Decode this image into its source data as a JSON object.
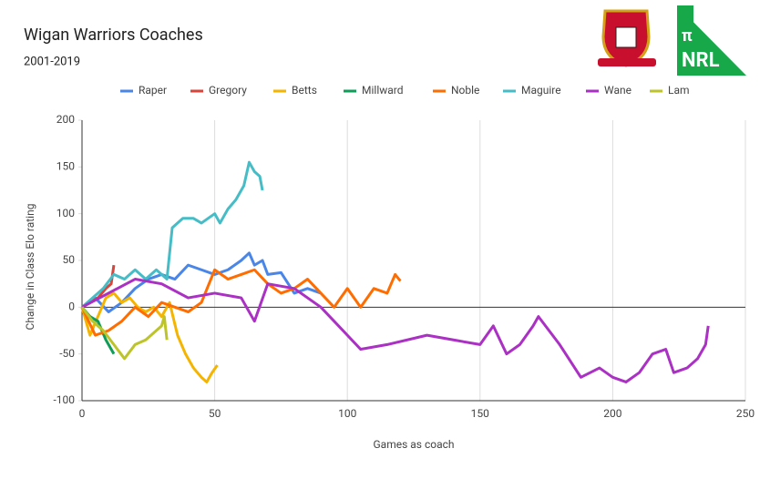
{
  "chart_data": {
    "type": "line",
    "title": "Wigan Warriors Coaches",
    "subtitle": "2001-2019",
    "x_label": "Games as coach",
    "y_label": "Change in Class Elo rating",
    "logo_text": [
      "π",
      "NRL"
    ],
    "xlim": [
      0,
      250
    ],
    "xticks": [
      0,
      50,
      100,
      150,
      200,
      250
    ],
    "ylim": [
      -100,
      200
    ],
    "yticks": [
      -100,
      -50,
      0,
      50,
      100,
      150,
      200
    ],
    "grid": "x",
    "legend": "top",
    "series": [
      {
        "name": "Raper",
        "color": "#4a86e8",
        "x": [
          0,
          5,
          10,
          15,
          20,
          25,
          30,
          35,
          40,
          45,
          50,
          55,
          60,
          63,
          65,
          68,
          70,
          75,
          80,
          85,
          90
        ],
        "values": [
          0,
          10,
          -5,
          5,
          20,
          30,
          35,
          30,
          45,
          40,
          35,
          40,
          50,
          58,
          45,
          50,
          35,
          37,
          15,
          20,
          15
        ]
      },
      {
        "name": "Gregory",
        "color": "#d9453a",
        "x": [
          0,
          3,
          6,
          9,
          11,
          12
        ],
        "values": [
          0,
          5,
          10,
          20,
          25,
          45
        ]
      },
      {
        "name": "Betts",
        "color": "#f4b400",
        "x": [
          0,
          3,
          6,
          9,
          12,
          15,
          18,
          21,
          24,
          27,
          30,
          33,
          36,
          39,
          42,
          45,
          47,
          49,
          51
        ],
        "values": [
          0,
          -30,
          -10,
          10,
          15,
          5,
          10,
          0,
          -5,
          0,
          -10,
          5,
          -30,
          -50,
          -65,
          -75,
          -80,
          -70,
          -62
        ]
      },
      {
        "name": "Millward",
        "color": "#0f9d58",
        "x": [
          0,
          3,
          6,
          9,
          12
        ],
        "values": [
          0,
          -10,
          -15,
          -35,
          -50
        ]
      },
      {
        "name": "Noble",
        "color": "#ff6d01",
        "x": [
          0,
          5,
          10,
          15,
          20,
          25,
          30,
          35,
          40,
          45,
          50,
          55,
          60,
          65,
          70,
          75,
          80,
          85,
          90,
          95,
          100,
          105,
          110,
          115,
          118,
          120
        ],
        "values": [
          0,
          -30,
          -25,
          -15,
          0,
          -10,
          5,
          0,
          -5,
          5,
          40,
          30,
          35,
          40,
          25,
          15,
          20,
          30,
          15,
          0,
          20,
          0,
          20,
          15,
          35,
          28
        ]
      },
      {
        "name": "Maguire",
        "color": "#46bdc6",
        "x": [
          0,
          4,
          8,
          12,
          16,
          20,
          24,
          28,
          32,
          34,
          38,
          42,
          45,
          50,
          52,
          55,
          58,
          61,
          63,
          65,
          67,
          68
        ],
        "values": [
          0,
          10,
          20,
          35,
          30,
          40,
          30,
          40,
          30,
          85,
          95,
          95,
          90,
          100,
          90,
          105,
          115,
          130,
          155,
          145,
          140,
          125
        ]
      },
      {
        "name": "Wane",
        "color": "#ab30c4",
        "x": [
          0,
          10,
          20,
          30,
          40,
          50,
          60,
          65,
          70,
          80,
          90,
          100,
          105,
          115,
          130,
          140,
          150,
          155,
          160,
          165,
          170,
          172,
          180,
          188,
          195,
          200,
          205,
          210,
          215,
          220,
          223,
          228,
          232,
          235,
          236
        ],
        "values": [
          0,
          15,
          30,
          25,
          10,
          15,
          10,
          -15,
          25,
          20,
          0,
          -30,
          -45,
          -40,
          -30,
          -35,
          -40,
          -20,
          -50,
          -40,
          -20,
          -10,
          -40,
          -75,
          -65,
          -75,
          -80,
          -70,
          -50,
          -45,
          -70,
          -65,
          -55,
          -40,
          -20
        ]
      },
      {
        "name": "Lam",
        "color": "#bcc42a",
        "x": [
          0,
          4,
          8,
          12,
          16,
          20,
          24,
          28,
          30,
          31,
          32
        ],
        "values": [
          0,
          -15,
          -25,
          -40,
          -55,
          -40,
          -35,
          -25,
          -20,
          -10,
          -35
        ]
      }
    ]
  }
}
